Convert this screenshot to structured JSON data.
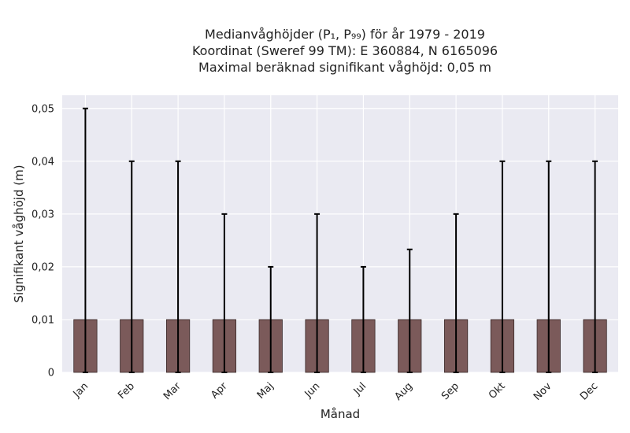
{
  "chart_data": {
    "type": "bar",
    "title_lines": [
      "Medianvåghöjder (P₁, P₉₉) för år 1979 - 2019",
      "Koordinat (Sweref 99 TM): E 360884, N 6165096",
      "Maximal beräknad signifikant våghöjd: 0,05 m"
    ],
    "xlabel": "Månad",
    "ylabel": "Signifikant våghöjd (m)",
    "categories": [
      "Jan",
      "Feb",
      "Mar",
      "Apr",
      "Maj",
      "Jun",
      "Jul",
      "Aug",
      "Sep",
      "Okt",
      "Nov",
      "Dec"
    ],
    "values": [
      0.01,
      0.01,
      0.01,
      0.01,
      0.01,
      0.01,
      0.01,
      0.01,
      0.01,
      0.01,
      0.01,
      0.01
    ],
    "error_low": [
      0,
      0,
      0,
      0,
      0,
      0,
      0,
      0,
      0,
      0,
      0,
      0
    ],
    "error_high": [
      0.05,
      0.04,
      0.04,
      0.03,
      0.02,
      0.03,
      0.02,
      0.0233,
      0.03,
      0.04,
      0.04,
      0.04
    ],
    "ylim": [
      0,
      0.0525
    ],
    "yticks": [
      0,
      0.01,
      0.02,
      0.03,
      0.04,
      0.05
    ],
    "ytick_labels": [
      "0",
      "0,01",
      "0,02",
      "0,03",
      "0,04",
      "0,05"
    ],
    "grid": true,
    "bar_color": "#7b5a5a",
    "background_color": "#eaeaf2"
  }
}
